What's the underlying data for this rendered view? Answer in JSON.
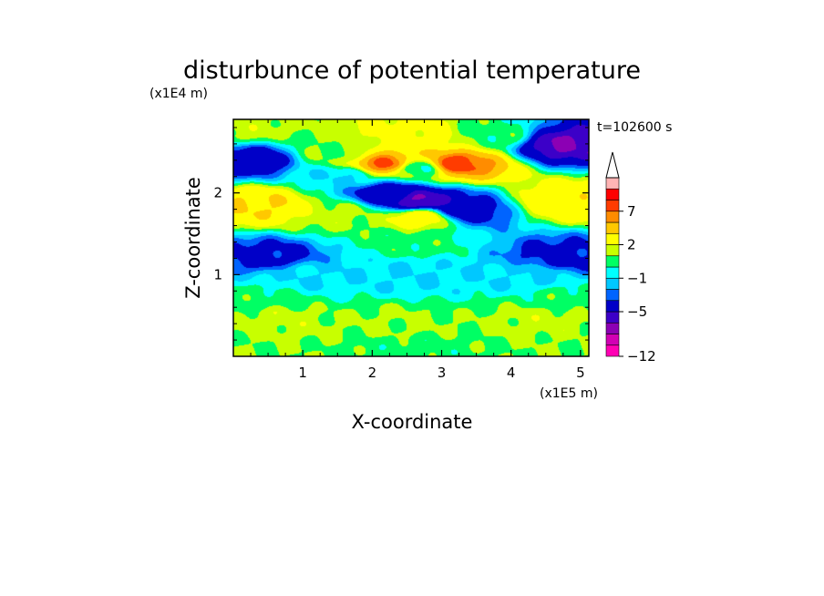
{
  "chart_data": {
    "type": "heatmap",
    "title": "disturbunce of potential temperature",
    "time_label": "t=102600 s",
    "xlabel": "X-coordinate",
    "ylabel": "Z-coordinate",
    "x_scale_label": "(x1E5 m)",
    "y_scale_label": "(x1E4 m)",
    "x_ticks": [
      {
        "value": 1,
        "label": "1"
      },
      {
        "value": 2,
        "label": "2"
      },
      {
        "value": 3,
        "label": "3"
      },
      {
        "value": 4,
        "label": "4"
      },
      {
        "value": 5,
        "label": "5"
      }
    ],
    "y_ticks": [
      {
        "value": 1,
        "label": "1"
      },
      {
        "value": 2,
        "label": "2"
      }
    ],
    "xlim": [
      0,
      5.12
    ],
    "ylim": [
      0,
      2.9
    ],
    "colorbar": {
      "levels": [
        -12,
        -10,
        -8,
        -6,
        -5,
        -3,
        -2,
        -1,
        0,
        1,
        2,
        4,
        6,
        7,
        9,
        11,
        13
      ],
      "colors": [
        "#ff00b4",
        "#d200b4",
        "#8c00b4",
        "#3c00c8",
        "#0000c8",
        "#0064ff",
        "#00c8ff",
        "#00ffff",
        "#00ff64",
        "#c8ff00",
        "#ffff00",
        "#ffc800",
        "#ff8c00",
        "#ff3c00",
        "#ff0000",
        "#ffb4b4"
      ],
      "tick_labels": [
        {
          "value": -12,
          "label": "−12"
        },
        {
          "value": -5,
          "label": "−5"
        },
        {
          "value": -1,
          "label": "−1"
        },
        {
          "value": 2,
          "label": "2"
        },
        {
          "value": 7,
          "label": "7"
        }
      ],
      "extend": "max"
    },
    "features": [
      {
        "x": 0.0,
        "z": 0.08,
        "value": 1
      },
      {
        "x": 2.56,
        "z": 0.08,
        "value": 0.5
      },
      {
        "x": 5.12,
        "z": 0.08,
        "value": 1
      },
      {
        "x": 0.6,
        "z": 0.45,
        "value": 1.5
      },
      {
        "x": 2.4,
        "z": 0.4,
        "value": 1.2
      },
      {
        "x": 4.5,
        "z": 0.45,
        "value": 1.5
      },
      {
        "x": 0.3,
        "z": 0.7,
        "value": 0.5
      },
      {
        "x": 4.8,
        "z": 0.7,
        "value": 0.5
      },
      {
        "x": 1.0,
        "z": 0.98,
        "value": -1.0
      },
      {
        "x": 2.56,
        "z": 1.0,
        "value": -1.0
      },
      {
        "x": 4.2,
        "z": 0.98,
        "value": -1.0
      },
      {
        "x": 0.5,
        "z": 1.22,
        "value": -3.5
      },
      {
        "x": 4.7,
        "z": 1.22,
        "value": -3.5
      },
      {
        "x": 2.6,
        "z": 1.4,
        "value": 0.5
      },
      {
        "x": 0.4,
        "z": 1.85,
        "value": 4
      },
      {
        "x": 4.8,
        "z": 1.9,
        "value": 3.5
      },
      {
        "x": 1.5,
        "z": 1.75,
        "value": 1.5
      },
      {
        "x": 2.7,
        "z": 1.7,
        "value": 3
      },
      {
        "x": 2.7,
        "z": 1.9,
        "value": -6
      },
      {
        "x": 2.2,
        "z": 2.0,
        "value": -4
      },
      {
        "x": 3.3,
        "z": 1.78,
        "value": -4
      },
      {
        "x": 0.25,
        "z": 2.4,
        "value": -4
      },
      {
        "x": 4.7,
        "z": 2.6,
        "value": -6
      },
      {
        "x": 2.2,
        "z": 2.35,
        "value": 7
      },
      {
        "x": 3.2,
        "z": 2.35,
        "value": 7.5
      },
      {
        "x": 2.65,
        "z": 2.3,
        "value": 0
      },
      {
        "x": 2.6,
        "z": 2.7,
        "value": 2.5
      },
      {
        "x": 1.5,
        "z": 2.5,
        "value": 1
      },
      {
        "x": 0.2,
        "z": 2.8,
        "value": 1.5
      },
      {
        "x": 3.8,
        "z": 2.7,
        "value": 0.5
      },
      {
        "x": 1.6,
        "z": 2.2,
        "value": -1.0
      }
    ]
  }
}
